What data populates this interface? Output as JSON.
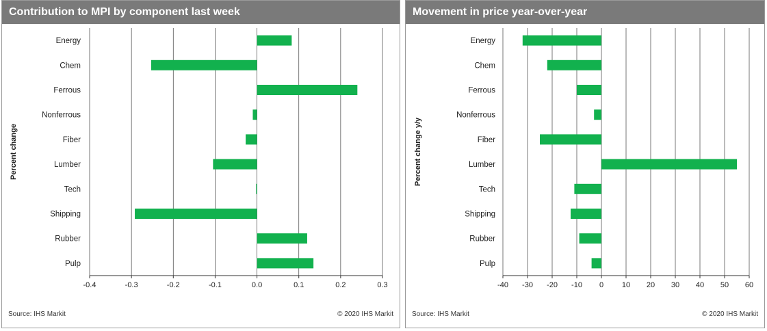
{
  "colors": {
    "bar": "#12b14e",
    "header_bg": "#7a7a7a",
    "grid": "#555555"
  },
  "chart_data": [
    {
      "type": "bar",
      "orientation": "horizontal",
      "title": "Contribution to MPI by component last week",
      "ylabel": "Percent change",
      "xlabel": "",
      "categories": [
        "Energy",
        "Chem",
        "Ferrous",
        "Nonferrous",
        "Fiber",
        "Lumber",
        "Tech",
        "Shipping",
        "Rubber",
        "Pulp"
      ],
      "values": [
        0.083,
        -0.253,
        0.24,
        -0.01,
        -0.027,
        -0.105,
        -0.002,
        -0.292,
        0.12,
        0.135
      ],
      "xlim": [
        -0.4,
        0.3
      ],
      "xticks": [
        "-0.4",
        "-0.3",
        "-0.2",
        "-0.1",
        "0.0",
        "0.1",
        "0.2",
        "0.3"
      ],
      "xtick_values": [
        -0.4,
        -0.3,
        -0.2,
        -0.1,
        0.0,
        0.1,
        0.2,
        0.3
      ],
      "grid": "vertical",
      "source": "Source: IHS Markit",
      "copyright": "© 2020 IHS Markit"
    },
    {
      "type": "bar",
      "orientation": "horizontal",
      "title": "Movement in price year-over-year",
      "ylabel": "Percent change y/y",
      "xlabel": "",
      "categories": [
        "Energy",
        "Chem",
        "Ferrous",
        "Nonferrous",
        "Fiber",
        "Lumber",
        "Tech",
        "Shipping",
        "Rubber",
        "Pulp"
      ],
      "values": [
        -32,
        -22,
        -10,
        -3,
        -25,
        55,
        -11,
        -12.5,
        -9,
        -4
      ],
      "xlim": [
        -40,
        60
      ],
      "xticks": [
        "-40",
        "-30",
        "-20",
        "-10",
        "0",
        "10",
        "20",
        "30",
        "40",
        "50",
        "60"
      ],
      "xtick_values": [
        -40,
        -30,
        -20,
        -10,
        0,
        10,
        20,
        30,
        40,
        50,
        60
      ],
      "grid": "vertical",
      "source": "Source: IHS Markit",
      "copyright": "© 2020 IHS Markit"
    }
  ]
}
